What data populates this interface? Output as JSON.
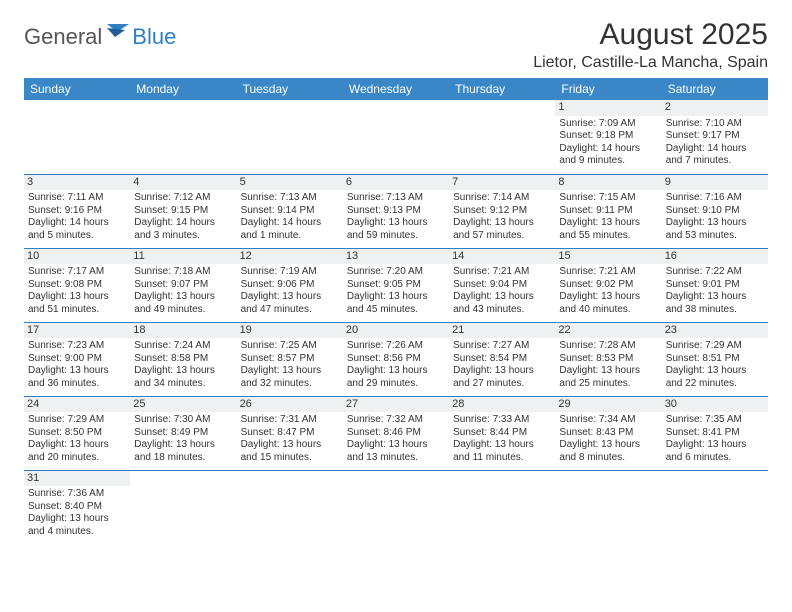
{
  "logo": {
    "text1": "General",
    "text2": "Blue"
  },
  "title": "August 2025",
  "location": "Lietor, Castille-La Mancha, Spain",
  "header_color": "#3a87c8",
  "border_color": "#2f7fc4",
  "daynum_bg": "#eef0f1",
  "weekdays": [
    "Sunday",
    "Monday",
    "Tuesday",
    "Wednesday",
    "Thursday",
    "Friday",
    "Saturday"
  ],
  "weeks": [
    [
      null,
      null,
      null,
      null,
      null,
      {
        "n": "1",
        "sr": "Sunrise: 7:09 AM",
        "ss": "Sunset: 9:18 PM",
        "dl1": "Daylight: 14 hours",
        "dl2": "and 9 minutes."
      },
      {
        "n": "2",
        "sr": "Sunrise: 7:10 AM",
        "ss": "Sunset: 9:17 PM",
        "dl1": "Daylight: 14 hours",
        "dl2": "and 7 minutes."
      }
    ],
    [
      {
        "n": "3",
        "sr": "Sunrise: 7:11 AM",
        "ss": "Sunset: 9:16 PM",
        "dl1": "Daylight: 14 hours",
        "dl2": "and 5 minutes."
      },
      {
        "n": "4",
        "sr": "Sunrise: 7:12 AM",
        "ss": "Sunset: 9:15 PM",
        "dl1": "Daylight: 14 hours",
        "dl2": "and 3 minutes."
      },
      {
        "n": "5",
        "sr": "Sunrise: 7:13 AM",
        "ss": "Sunset: 9:14 PM",
        "dl1": "Daylight: 14 hours",
        "dl2": "and 1 minute."
      },
      {
        "n": "6",
        "sr": "Sunrise: 7:13 AM",
        "ss": "Sunset: 9:13 PM",
        "dl1": "Daylight: 13 hours",
        "dl2": "and 59 minutes."
      },
      {
        "n": "7",
        "sr": "Sunrise: 7:14 AM",
        "ss": "Sunset: 9:12 PM",
        "dl1": "Daylight: 13 hours",
        "dl2": "and 57 minutes."
      },
      {
        "n": "8",
        "sr": "Sunrise: 7:15 AM",
        "ss": "Sunset: 9:11 PM",
        "dl1": "Daylight: 13 hours",
        "dl2": "and 55 minutes."
      },
      {
        "n": "9",
        "sr": "Sunrise: 7:16 AM",
        "ss": "Sunset: 9:10 PM",
        "dl1": "Daylight: 13 hours",
        "dl2": "and 53 minutes."
      }
    ],
    [
      {
        "n": "10",
        "sr": "Sunrise: 7:17 AM",
        "ss": "Sunset: 9:08 PM",
        "dl1": "Daylight: 13 hours",
        "dl2": "and 51 minutes."
      },
      {
        "n": "11",
        "sr": "Sunrise: 7:18 AM",
        "ss": "Sunset: 9:07 PM",
        "dl1": "Daylight: 13 hours",
        "dl2": "and 49 minutes."
      },
      {
        "n": "12",
        "sr": "Sunrise: 7:19 AM",
        "ss": "Sunset: 9:06 PM",
        "dl1": "Daylight: 13 hours",
        "dl2": "and 47 minutes."
      },
      {
        "n": "13",
        "sr": "Sunrise: 7:20 AM",
        "ss": "Sunset: 9:05 PM",
        "dl1": "Daylight: 13 hours",
        "dl2": "and 45 minutes."
      },
      {
        "n": "14",
        "sr": "Sunrise: 7:21 AM",
        "ss": "Sunset: 9:04 PM",
        "dl1": "Daylight: 13 hours",
        "dl2": "and 43 minutes."
      },
      {
        "n": "15",
        "sr": "Sunrise: 7:21 AM",
        "ss": "Sunset: 9:02 PM",
        "dl1": "Daylight: 13 hours",
        "dl2": "and 40 minutes."
      },
      {
        "n": "16",
        "sr": "Sunrise: 7:22 AM",
        "ss": "Sunset: 9:01 PM",
        "dl1": "Daylight: 13 hours",
        "dl2": "and 38 minutes."
      }
    ],
    [
      {
        "n": "17",
        "sr": "Sunrise: 7:23 AM",
        "ss": "Sunset: 9:00 PM",
        "dl1": "Daylight: 13 hours",
        "dl2": "and 36 minutes."
      },
      {
        "n": "18",
        "sr": "Sunrise: 7:24 AM",
        "ss": "Sunset: 8:58 PM",
        "dl1": "Daylight: 13 hours",
        "dl2": "and 34 minutes."
      },
      {
        "n": "19",
        "sr": "Sunrise: 7:25 AM",
        "ss": "Sunset: 8:57 PM",
        "dl1": "Daylight: 13 hours",
        "dl2": "and 32 minutes."
      },
      {
        "n": "20",
        "sr": "Sunrise: 7:26 AM",
        "ss": "Sunset: 8:56 PM",
        "dl1": "Daylight: 13 hours",
        "dl2": "and 29 minutes."
      },
      {
        "n": "21",
        "sr": "Sunrise: 7:27 AM",
        "ss": "Sunset: 8:54 PM",
        "dl1": "Daylight: 13 hours",
        "dl2": "and 27 minutes."
      },
      {
        "n": "22",
        "sr": "Sunrise: 7:28 AM",
        "ss": "Sunset: 8:53 PM",
        "dl1": "Daylight: 13 hours",
        "dl2": "and 25 minutes."
      },
      {
        "n": "23",
        "sr": "Sunrise: 7:29 AM",
        "ss": "Sunset: 8:51 PM",
        "dl1": "Daylight: 13 hours",
        "dl2": "and 22 minutes."
      }
    ],
    [
      {
        "n": "24",
        "sr": "Sunrise: 7:29 AM",
        "ss": "Sunset: 8:50 PM",
        "dl1": "Daylight: 13 hours",
        "dl2": "and 20 minutes."
      },
      {
        "n": "25",
        "sr": "Sunrise: 7:30 AM",
        "ss": "Sunset: 8:49 PM",
        "dl1": "Daylight: 13 hours",
        "dl2": "and 18 minutes."
      },
      {
        "n": "26",
        "sr": "Sunrise: 7:31 AM",
        "ss": "Sunset: 8:47 PM",
        "dl1": "Daylight: 13 hours",
        "dl2": "and 15 minutes."
      },
      {
        "n": "27",
        "sr": "Sunrise: 7:32 AM",
        "ss": "Sunset: 8:46 PM",
        "dl1": "Daylight: 13 hours",
        "dl2": "and 13 minutes."
      },
      {
        "n": "28",
        "sr": "Sunrise: 7:33 AM",
        "ss": "Sunset: 8:44 PM",
        "dl1": "Daylight: 13 hours",
        "dl2": "and 11 minutes."
      },
      {
        "n": "29",
        "sr": "Sunrise: 7:34 AM",
        "ss": "Sunset: 8:43 PM",
        "dl1": "Daylight: 13 hours",
        "dl2": "and 8 minutes."
      },
      {
        "n": "30",
        "sr": "Sunrise: 7:35 AM",
        "ss": "Sunset: 8:41 PM",
        "dl1": "Daylight: 13 hours",
        "dl2": "and 6 minutes."
      }
    ],
    [
      {
        "n": "31",
        "sr": "Sunrise: 7:36 AM",
        "ss": "Sunset: 8:40 PM",
        "dl1": "Daylight: 13 hours",
        "dl2": "and 4 minutes."
      },
      null,
      null,
      null,
      null,
      null,
      null
    ]
  ]
}
